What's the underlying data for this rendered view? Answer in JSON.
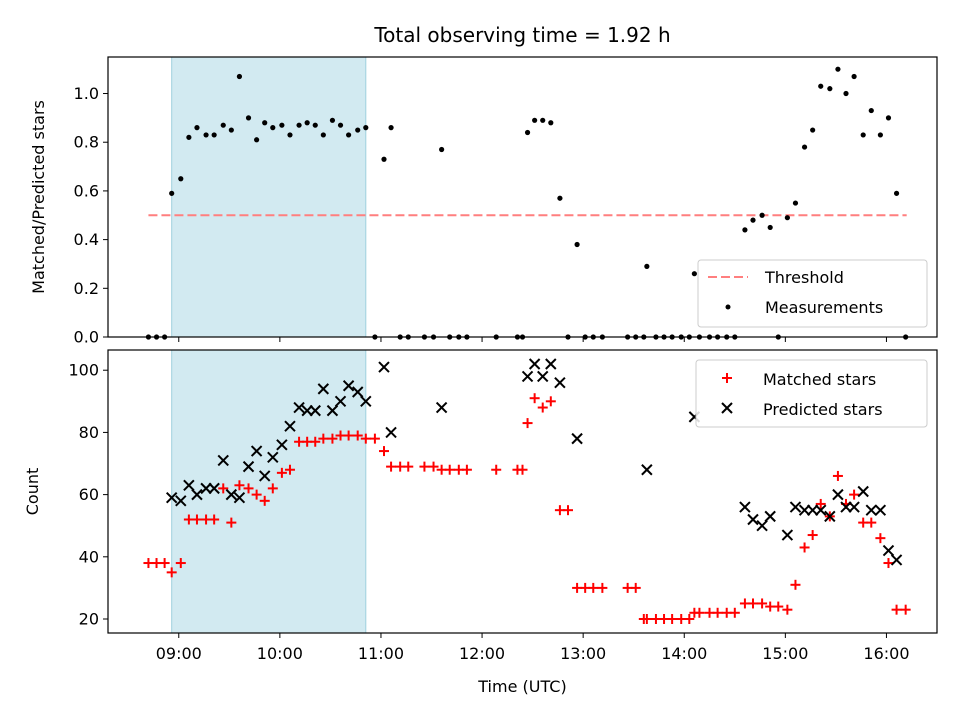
{
  "chart_data": [
    {
      "type": "scatter",
      "title": "Total observing time = 1.92 h",
      "xlabel": "",
      "ylabel": "Matched/Predicted stars",
      "xlim": [
        8.3,
        16.5
      ],
      "ylim": [
        0.0,
        1.15
      ],
      "y_ticks": [
        {
          "value": 0.0,
          "label": "0.0"
        },
        {
          "value": 0.2,
          "label": "0.2"
        },
        {
          "value": 0.4,
          "label": "0.4"
        },
        {
          "value": 0.6,
          "label": "0.6"
        },
        {
          "value": 0.8,
          "label": "0.8"
        },
        {
          "value": 1.0,
          "label": "1.0"
        }
      ],
      "shaded_interval": [
        8.93,
        10.85
      ],
      "threshold": {
        "name": "Threshold",
        "value": 0.5,
        "x": [
          8.7,
          16.2
        ],
        "color": "#ff7f7f"
      },
      "legend_position": "lower right",
      "series": [
        {
          "name": "Measurements",
          "color": "#000000",
          "points": [
            [
              8.7,
              0
            ],
            [
              8.78,
              0
            ],
            [
              8.86,
              0
            ],
            [
              8.93,
              0.59
            ],
            [
              9.02,
              0.65
            ],
            [
              9.1,
              0.82
            ],
            [
              9.18,
              0.86
            ],
            [
              9.27,
              0.83
            ],
            [
              9.35,
              0.83
            ],
            [
              9.44,
              0.87
            ],
            [
              9.52,
              0.85
            ],
            [
              9.6,
              1.07
            ],
            [
              9.69,
              0.9
            ],
            [
              9.77,
              0.81
            ],
            [
              9.85,
              0.88
            ],
            [
              9.93,
              0.86
            ],
            [
              10.02,
              0.87
            ],
            [
              10.1,
              0.83
            ],
            [
              10.19,
              0.87
            ],
            [
              10.27,
              0.88
            ],
            [
              10.35,
              0.87
            ],
            [
              10.43,
              0.83
            ],
            [
              10.52,
              0.89
            ],
            [
              10.6,
              0.87
            ],
            [
              10.68,
              0.83
            ],
            [
              10.77,
              0.85
            ],
            [
              10.85,
              0.86
            ],
            [
              10.94,
              0
            ],
            [
              11.03,
              0.73
            ],
            [
              11.1,
              0.86
            ],
            [
              11.19,
              0
            ],
            [
              11.27,
              0
            ],
            [
              11.43,
              0
            ],
            [
              11.52,
              0
            ],
            [
              11.6,
              0.77
            ],
            [
              11.68,
              0
            ],
            [
              11.77,
              0
            ],
            [
              11.85,
              0
            ],
            [
              12.14,
              0
            ],
            [
              12.35,
              0
            ],
            [
              12.4,
              0
            ],
            [
              12.45,
              0.84
            ],
            [
              12.52,
              0.89
            ],
            [
              12.6,
              0.89
            ],
            [
              12.68,
              0.88
            ],
            [
              12.77,
              0.57
            ],
            [
              12.85,
              0
            ],
            [
              12.94,
              0.38
            ],
            [
              13.02,
              0
            ],
            [
              13.1,
              0
            ],
            [
              13.19,
              0
            ],
            [
              13.44,
              0
            ],
            [
              13.52,
              0
            ],
            [
              13.6,
              0
            ],
            [
              13.63,
              0.29
            ],
            [
              13.72,
              0
            ],
            [
              13.8,
              0
            ],
            [
              13.88,
              0
            ],
            [
              13.97,
              0
            ],
            [
              14.05,
              0
            ],
            [
              14.1,
              0.26
            ],
            [
              14.15,
              0
            ],
            [
              14.25,
              0
            ],
            [
              14.33,
              0
            ],
            [
              14.42,
              0
            ],
            [
              14.5,
              0
            ],
            [
              14.6,
              0.44
            ],
            [
              14.68,
              0.48
            ],
            [
              14.77,
              0.5
            ],
            [
              14.85,
              0.45
            ],
            [
              14.93,
              0
            ],
            [
              15.02,
              0.49
            ],
            [
              15.1,
              0.55
            ],
            [
              15.19,
              0.78
            ],
            [
              15.27,
              0.85
            ],
            [
              15.35,
              1.03
            ],
            [
              15.44,
              1.02
            ],
            [
              15.52,
              1.1
            ],
            [
              15.6,
              1.0
            ],
            [
              15.68,
              1.07
            ],
            [
              15.77,
              0.83
            ],
            [
              15.85,
              0.93
            ],
            [
              15.94,
              0.83
            ],
            [
              16.02,
              0.9
            ],
            [
              16.1,
              0.59
            ],
            [
              16.19,
              0
            ]
          ]
        }
      ]
    },
    {
      "type": "scatter",
      "title": "",
      "xlabel": "Time (UTC)",
      "ylabel": "Count",
      "xlim": [
        8.3,
        16.5
      ],
      "ylim": [
        15.5,
        106.5
      ],
      "x_ticks": [
        {
          "value": 9,
          "label": "09:00"
        },
        {
          "value": 10,
          "label": "10:00"
        },
        {
          "value": 11,
          "label": "11:00"
        },
        {
          "value": 12,
          "label": "12:00"
        },
        {
          "value": 13,
          "label": "13:00"
        },
        {
          "value": 14,
          "label": "14:00"
        },
        {
          "value": 15,
          "label": "15:00"
        },
        {
          "value": 16,
          "label": "16:00"
        }
      ],
      "y_ticks": [
        {
          "value": 20,
          "label": "20"
        },
        {
          "value": 40,
          "label": "40"
        },
        {
          "value": 60,
          "label": "60"
        },
        {
          "value": 80,
          "label": "80"
        },
        {
          "value": 100,
          "label": "100"
        }
      ],
      "shaded_interval": [
        8.93,
        10.85
      ],
      "legend_position": "upper right",
      "series": [
        {
          "name": "Matched stars",
          "marker": "plus",
          "color": "#ff0000",
          "points": [
            [
              8.7,
              38
            ],
            [
              8.78,
              38
            ],
            [
              8.86,
              38
            ],
            [
              8.93,
              35
            ],
            [
              9.02,
              38
            ],
            [
              9.1,
              52
            ],
            [
              9.18,
              52
            ],
            [
              9.27,
              52
            ],
            [
              9.35,
              52
            ],
            [
              9.44,
              62
            ],
            [
              9.52,
              51
            ],
            [
              9.6,
              63
            ],
            [
              9.69,
              62
            ],
            [
              9.77,
              60
            ],
            [
              9.85,
              58
            ],
            [
              9.93,
              62
            ],
            [
              10.02,
              67
            ],
            [
              10.1,
              68
            ],
            [
              10.19,
              77
            ],
            [
              10.27,
              77
            ],
            [
              10.35,
              77
            ],
            [
              10.43,
              78
            ],
            [
              10.52,
              78
            ],
            [
              10.6,
              79
            ],
            [
              10.68,
              79
            ],
            [
              10.77,
              79
            ],
            [
              10.85,
              78
            ],
            [
              10.94,
              78
            ],
            [
              11.03,
              74
            ],
            [
              11.1,
              69
            ],
            [
              11.19,
              69
            ],
            [
              11.27,
              69
            ],
            [
              11.43,
              69
            ],
            [
              11.52,
              69
            ],
            [
              11.6,
              68
            ],
            [
              11.68,
              68
            ],
            [
              11.77,
              68
            ],
            [
              11.85,
              68
            ],
            [
              12.14,
              68
            ],
            [
              12.35,
              68
            ],
            [
              12.4,
              68
            ],
            [
              12.45,
              83
            ],
            [
              12.52,
              91
            ],
            [
              12.6,
              88
            ],
            [
              12.68,
              90
            ],
            [
              12.77,
              55
            ],
            [
              12.85,
              55
            ],
            [
              12.94,
              30
            ],
            [
              13.02,
              30
            ],
            [
              13.1,
              30
            ],
            [
              13.19,
              30
            ],
            [
              13.44,
              30
            ],
            [
              13.52,
              30
            ],
            [
              13.6,
              20
            ],
            [
              13.63,
              20
            ],
            [
              13.72,
              20
            ],
            [
              13.8,
              20
            ],
            [
              13.88,
              20
            ],
            [
              13.97,
              20
            ],
            [
              14.05,
              20
            ],
            [
              14.1,
              22
            ],
            [
              14.15,
              22
            ],
            [
              14.25,
              22
            ],
            [
              14.33,
              22
            ],
            [
              14.42,
              22
            ],
            [
              14.5,
              22
            ],
            [
              14.6,
              25
            ],
            [
              14.68,
              25
            ],
            [
              14.77,
              25
            ],
            [
              14.85,
              24
            ],
            [
              14.93,
              24
            ],
            [
              15.02,
              23
            ],
            [
              15.1,
              31
            ],
            [
              15.19,
              43
            ],
            [
              15.27,
              47
            ],
            [
              15.35,
              57
            ],
            [
              15.44,
              53
            ],
            [
              15.52,
              66
            ],
            [
              15.6,
              57
            ],
            [
              15.68,
              60
            ],
            [
              15.77,
              51
            ],
            [
              15.85,
              51
            ],
            [
              15.94,
              46
            ],
            [
              16.02,
              38
            ],
            [
              16.1,
              23
            ],
            [
              16.19,
              23
            ]
          ]
        },
        {
          "name": "Predicted stars",
          "marker": "x",
          "color": "#000000",
          "points": [
            [
              8.93,
              59
            ],
            [
              9.02,
              58
            ],
            [
              9.1,
              63
            ],
            [
              9.18,
              60
            ],
            [
              9.27,
              62
            ],
            [
              9.35,
              62
            ],
            [
              9.44,
              71
            ],
            [
              9.52,
              60
            ],
            [
              9.6,
              59
            ],
            [
              9.69,
              69
            ],
            [
              9.77,
              74
            ],
            [
              9.85,
              66
            ],
            [
              9.93,
              72
            ],
            [
              10.02,
              76
            ],
            [
              10.1,
              82
            ],
            [
              10.19,
              88
            ],
            [
              10.27,
              87
            ],
            [
              10.35,
              87
            ],
            [
              10.43,
              94
            ],
            [
              10.52,
              87
            ],
            [
              10.6,
              90
            ],
            [
              10.68,
              95
            ],
            [
              10.77,
              93
            ],
            [
              10.85,
              90
            ],
            [
              11.03,
              101
            ],
            [
              11.1,
              80
            ],
            [
              11.6,
              88
            ],
            [
              12.45,
              98
            ],
            [
              12.52,
              102
            ],
            [
              12.6,
              98
            ],
            [
              12.68,
              102
            ],
            [
              12.77,
              96
            ],
            [
              12.94,
              78
            ],
            [
              13.63,
              68
            ],
            [
              14.1,
              85
            ],
            [
              14.6,
              56
            ],
            [
              14.68,
              52
            ],
            [
              14.77,
              50
            ],
            [
              14.85,
              53
            ],
            [
              15.02,
              47
            ],
            [
              15.1,
              56
            ],
            [
              15.19,
              55
            ],
            [
              15.27,
              55
            ],
            [
              15.35,
              55
            ],
            [
              15.44,
              53
            ],
            [
              15.52,
              60
            ],
            [
              15.6,
              56
            ],
            [
              15.68,
              56
            ],
            [
              15.77,
              61
            ],
            [
              15.85,
              55
            ],
            [
              15.94,
              55
            ],
            [
              16.02,
              42
            ],
            [
              16.1,
              39
            ]
          ]
        }
      ]
    }
  ]
}
